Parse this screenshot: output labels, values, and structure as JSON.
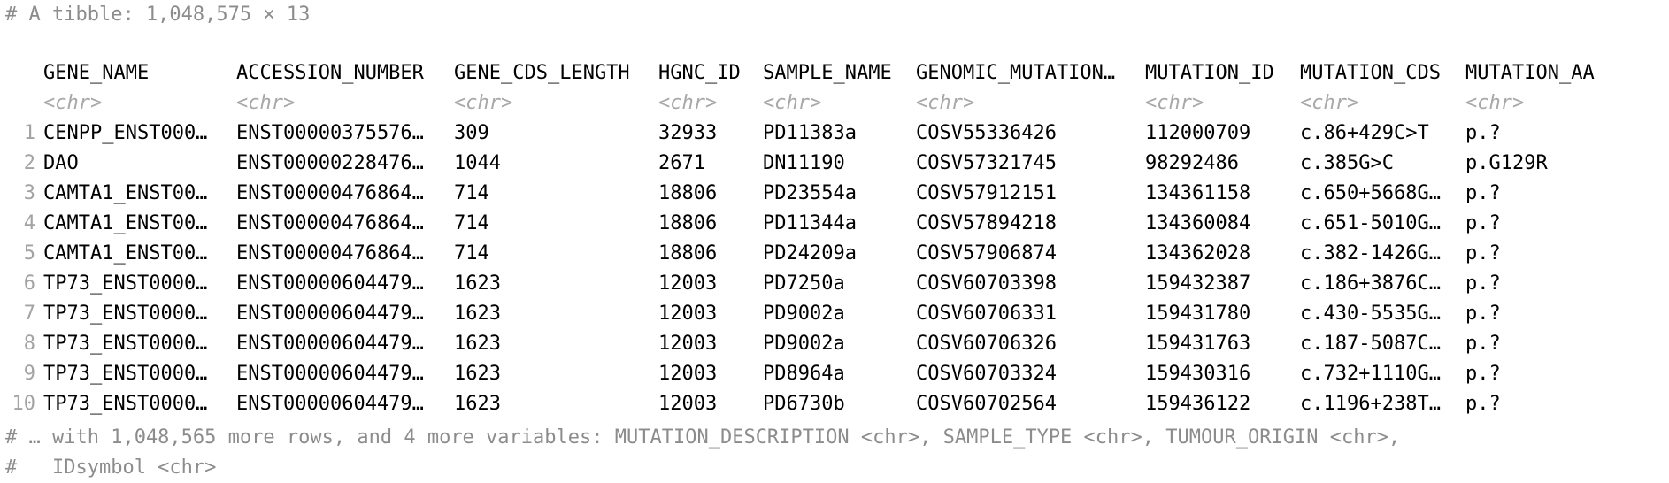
{
  "console": {
    "header": "# A tibble: 1,048,575 × 13",
    "footer_line1": "# … with 1,048,565 more rows, and 4 more variables: MUTATION_DESCRIPTION <chr>, SAMPLE_TYPE <chr>, TUMOUR_ORIGIN <chr>,",
    "footer_line2": "#   IDsymbol <chr>"
  },
  "table": {
    "columns": [
      {
        "name": "GENE_NAME",
        "type": "<chr>"
      },
      {
        "name": "ACCESSION_NUMBER",
        "type": "<chr>"
      },
      {
        "name": "GENE_CDS_LENGTH",
        "type": "<chr>"
      },
      {
        "name": "HGNC_ID",
        "type": "<chr>"
      },
      {
        "name": "SAMPLE_NAME",
        "type": "<chr>"
      },
      {
        "name": "GENOMIC_MUTATION…",
        "type": "<chr>"
      },
      {
        "name": "MUTATION_ID",
        "type": "<chr>"
      },
      {
        "name": "MUTATION_CDS",
        "type": "<chr>"
      },
      {
        "name": "MUTATION_AA",
        "type": "<chr>"
      }
    ],
    "rows": [
      {
        "n": "1",
        "cells": [
          "CENPP_ENST000…",
          "ENST00000375576…",
          "309",
          "32933",
          "PD11383a",
          "COSV55336426",
          "112000709",
          "c.86+429C>T",
          "p.?"
        ]
      },
      {
        "n": "2",
        "cells": [
          "DAO",
          "ENST00000228476…",
          "1044",
          "2671",
          "DN11190",
          "COSV57321745",
          "98292486",
          "c.385G>C",
          "p.G129R"
        ]
      },
      {
        "n": "3",
        "cells": [
          "CAMTA1_ENST00…",
          "ENST00000476864…",
          "714",
          "18806",
          "PD23554a",
          "COSV57912151",
          "134361158",
          "c.650+5668G…",
          "p.?"
        ]
      },
      {
        "n": "4",
        "cells": [
          "CAMTA1_ENST00…",
          "ENST00000476864…",
          "714",
          "18806",
          "PD11344a",
          "COSV57894218",
          "134360084",
          "c.651-5010G…",
          "p.?"
        ]
      },
      {
        "n": "5",
        "cells": [
          "CAMTA1_ENST00…",
          "ENST00000476864…",
          "714",
          "18806",
          "PD24209a",
          "COSV57906874",
          "134362028",
          "c.382-1426G…",
          "p.?"
        ]
      },
      {
        "n": "6",
        "cells": [
          "TP73_ENST0000…",
          "ENST00000604479…",
          "1623",
          "12003",
          "PD7250a",
          "COSV60703398",
          "159432387",
          "c.186+3876C…",
          "p.?"
        ]
      },
      {
        "n": "7",
        "cells": [
          "TP73_ENST0000…",
          "ENST00000604479…",
          "1623",
          "12003",
          "PD9002a",
          "COSV60706331",
          "159431780",
          "c.430-5535G…",
          "p.?"
        ]
      },
      {
        "n": "8",
        "cells": [
          "TP73_ENST0000…",
          "ENST00000604479…",
          "1623",
          "12003",
          "PD9002a",
          "COSV60706326",
          "159431763",
          "c.187-5087C…",
          "p.?"
        ]
      },
      {
        "n": "9",
        "cells": [
          "TP73_ENST0000…",
          "ENST00000604479…",
          "1623",
          "12003",
          "PD8964a",
          "COSV60703324",
          "159430316",
          "c.732+1110G…",
          "p.?"
        ]
      },
      {
        "n": "10",
        "cells": [
          "TP73_ENST0000…",
          "ENST00000604479…",
          "1623",
          "12003",
          "PD6730b",
          "COSV60702564",
          "159436122",
          "c.1196+238T…",
          "p.?"
        ]
      }
    ]
  }
}
